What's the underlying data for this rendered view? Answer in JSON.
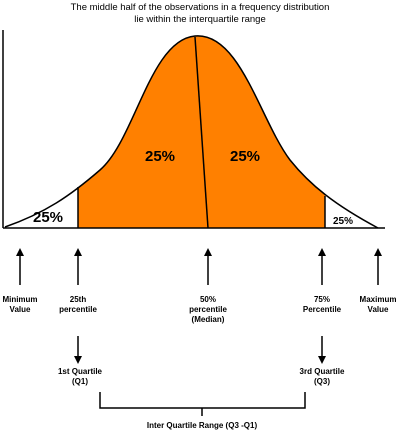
{
  "title": [
    "The middle half of the observations in a frequency distribution",
    "lie within the interquartile range"
  ],
  "regions": [
    "25%",
    "25%",
    "25%",
    "25%"
  ],
  "points": [
    {
      "lines": [
        "Minimum",
        "Value"
      ]
    },
    {
      "lines": [
        "25th",
        "percentile"
      ]
    },
    {
      "lines": [
        "50%",
        "percentile",
        "(Median)"
      ]
    },
    {
      "lines": [
        "75%",
        "Percentile"
      ]
    },
    {
      "lines": [
        "Maximum",
        "Value"
      ]
    }
  ],
  "quartiles": [
    {
      "lines": [
        "1st Quartile",
        "(Q1)"
      ]
    },
    {
      "lines": [
        "3rd Quartile",
        "(Q3)"
      ]
    }
  ],
  "range_label": "Inter Quartile Range (Q3 -Q1)"
}
